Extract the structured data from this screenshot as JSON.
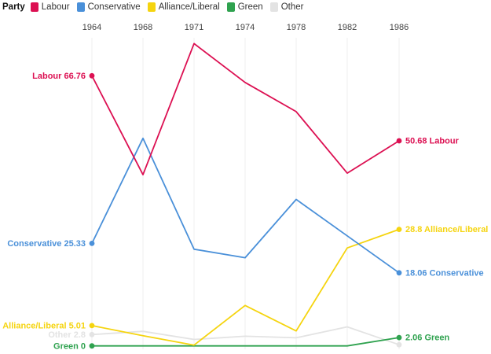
{
  "legend": {
    "title": "Party",
    "items": [
      {
        "label": "Labour",
        "color": "#dc1052"
      },
      {
        "label": "Conservative",
        "color": "#4a90d9"
      },
      {
        "label": "Alliance/Liberal",
        "color": "#f5d40f"
      },
      {
        "label": "Green",
        "color": "#2fa24f"
      },
      {
        "label": "Other",
        "color": "#e3e3e3"
      }
    ]
  },
  "chart_data": {
    "type": "line",
    "x": [
      1964,
      1968,
      1971,
      1974,
      1978,
      1982,
      1986
    ],
    "xlabel": "",
    "ylabel": "",
    "ylim": [
      0,
      78
    ],
    "grid": "faint-vertical-gridlines",
    "legend_position": "top-left",
    "markers": "endpoints-only",
    "series": [
      {
        "name": "Labour",
        "color": "#dc1052",
        "values": [
          66.76,
          42.3,
          74.7,
          65.1,
          57.9,
          42.7,
          50.68
        ],
        "start_label": "Labour 66.76",
        "end_label": "50.68 Labour"
      },
      {
        "name": "Conservative",
        "color": "#4a90d9",
        "values": [
          25.33,
          51.3,
          23.9,
          21.8,
          36.2,
          27.2,
          18.06
        ],
        "start_label": "Conservative 25.33",
        "end_label": "18.06 Conservative"
      },
      {
        "name": "Alliance/Liberal",
        "color": "#f5d40f",
        "values": [
          5.01,
          2.5,
          0.2,
          10.0,
          3.7,
          24.2,
          28.8
        ],
        "start_label": "Alliance/Liberal 5.01",
        "end_label": "28.8 Alliance/Liberal"
      },
      {
        "name": "Green",
        "color": "#2fa24f",
        "values": [
          0,
          0,
          0,
          0,
          0,
          0,
          2.06
        ],
        "start_label": "Green 0",
        "end_label": "2.06 Green"
      },
      {
        "name": "Other",
        "color": "#e3e3e3",
        "values": [
          2.8,
          3.6,
          1.6,
          2.4,
          2.0,
          4.7,
          0.3
        ],
        "start_label": "Other 2.8",
        "end_label": ""
      }
    ]
  }
}
